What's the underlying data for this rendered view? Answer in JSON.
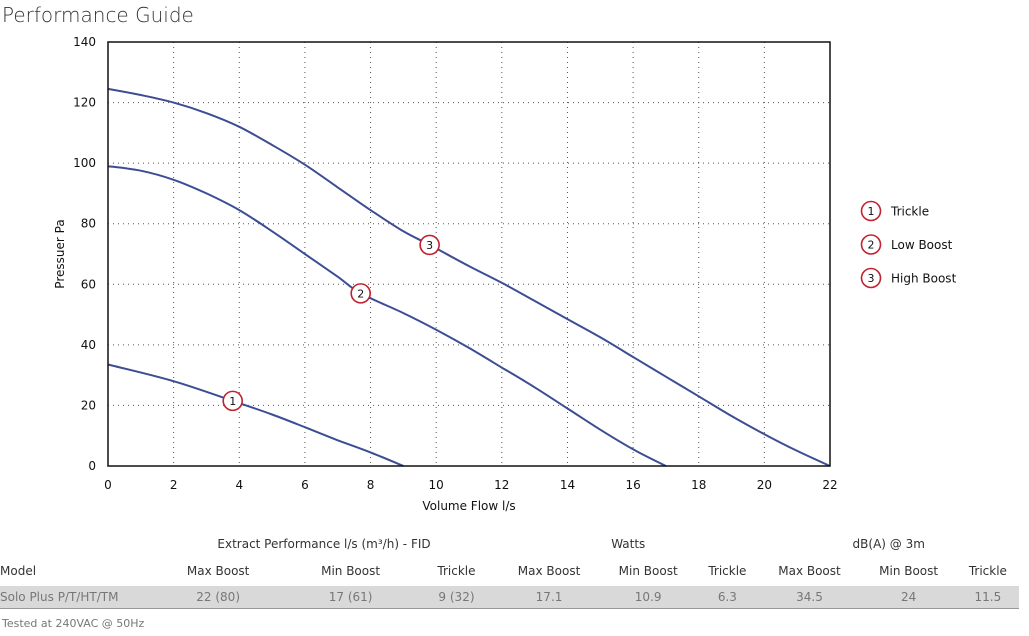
{
  "title": "Performance Guide",
  "chart_data": {
    "type": "line",
    "xlabel": "Volume Flow l/s",
    "ylabel": "Pressuer Pa",
    "xlim": [
      0,
      22
    ],
    "ylim": [
      0,
      140
    ],
    "xticks": [
      0,
      2,
      4,
      6,
      8,
      10,
      12,
      14,
      16,
      18,
      20,
      22
    ],
    "yticks": [
      0,
      20,
      40,
      60,
      80,
      100,
      120,
      140
    ],
    "grid": true,
    "legend_position": "right",
    "line_color": "#3c4d94",
    "marker_color": "#c0222f",
    "series": [
      {
        "marker": "1",
        "name": "Trickle",
        "x": [
          0,
          2,
          3.8,
          5,
          6,
          7,
          8,
          9
        ],
        "y": [
          33.5,
          28,
          21.5,
          17,
          12.8,
          8.5,
          4.5,
          0
        ],
        "marker_at": [
          3.8,
          21.5
        ]
      },
      {
        "marker": "2",
        "name": "Low Boost",
        "x": [
          0,
          1,
          2,
          3,
          4,
          5,
          6,
          7,
          7.7,
          9,
          10,
          11,
          12,
          13,
          14,
          15,
          16,
          17
        ],
        "y": [
          99,
          97.5,
          94.5,
          90,
          84.5,
          77.5,
          70,
          62.5,
          57,
          50.5,
          45,
          39,
          32.5,
          26,
          19,
          12,
          5.5,
          0
        ],
        "marker_at": [
          7.7,
          57
        ]
      },
      {
        "marker": "3",
        "name": "High Boost",
        "x": [
          0,
          1,
          2,
          3,
          4,
          5,
          6,
          7,
          8,
          9,
          9.8,
          11,
          12,
          13,
          14,
          15,
          16,
          17,
          18,
          19,
          20,
          21,
          22
        ],
        "y": [
          124.5,
          122.5,
          120,
          116.5,
          112,
          106,
          99.5,
          92,
          84.5,
          77.5,
          73,
          66,
          60.5,
          54.5,
          48.5,
          42.5,
          36,
          29.5,
          23,
          16.5,
          10.5,
          5,
          0
        ],
        "marker_at": [
          9.8,
          73
        ]
      }
    ]
  },
  "legend": [
    {
      "marker": "1",
      "label": "Trickle"
    },
    {
      "marker": "2",
      "label": "Low Boost"
    },
    {
      "marker": "3",
      "label": "High Boost"
    }
  ],
  "table": {
    "groups": [
      "Extract Performance l/s (m³/h) - FID",
      "Watts",
      "dB(A) @ 3m"
    ],
    "headers": [
      "Model",
      "Max Boost",
      "Min Boost",
      "Trickle",
      "Max Boost",
      "Min Boost",
      "Trickle",
      "Max Boost",
      "Min Boost",
      "Trickle"
    ],
    "rows": [
      [
        "Solo Plus P/T/HT/TM",
        "22 (80)",
        "17 (61)",
        "9 (32)",
        "17.1",
        "10.9",
        "6.3",
        "34.5",
        "24",
        "11.5"
      ]
    ]
  },
  "footnote": "Tested at 240VAC @ 50Hz"
}
